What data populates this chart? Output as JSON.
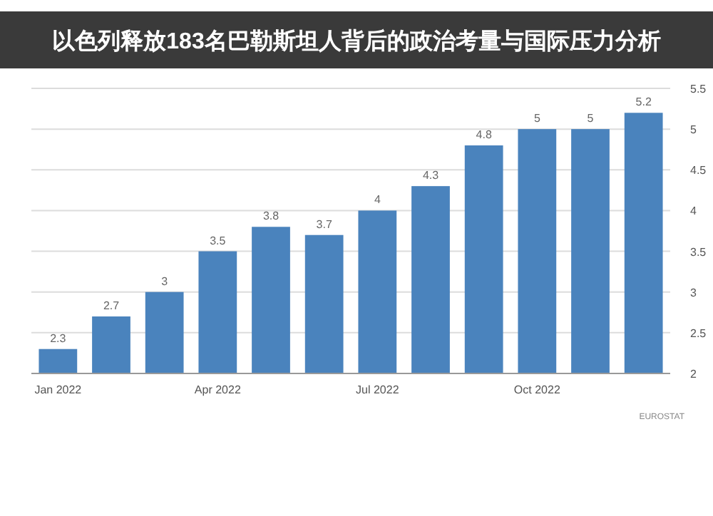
{
  "chart_data": {
    "type": "bar",
    "title": "以色列释放183名巴勒斯坦人背后的政治考量与国际压力分析",
    "categories": [
      "Jan 2022",
      null,
      null,
      "Apr 2022",
      null,
      null,
      "Jul 2022",
      null,
      null,
      "Oct 2022",
      null,
      null
    ],
    "values": [
      2.3,
      2.7,
      3,
      3.5,
      3.8,
      3.7,
      4,
      4.3,
      4.8,
      5,
      5,
      5.2
    ],
    "color": "#4a83bd",
    "ylim": [
      2,
      5.5
    ],
    "yticks": [
      2,
      2.5,
      3,
      3.5,
      4,
      4.5,
      5,
      5.5
    ],
    "grid": "y",
    "data_labels": true,
    "annotations": [
      "EUROSTAT"
    ]
  }
}
